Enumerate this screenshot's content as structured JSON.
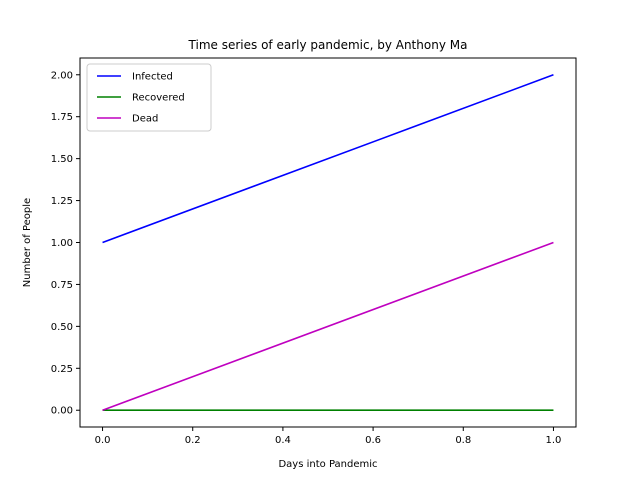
{
  "chart_data": {
    "type": "line",
    "title": "Time series of early pandemic, by Anthony Ma",
    "xlabel": "Days into Pandemic",
    "ylabel": "Number of People",
    "x": [
      0.0,
      1.0
    ],
    "xlim": [
      -0.05,
      1.05
    ],
    "ylim": [
      -0.1,
      2.1
    ],
    "xticks": [
      0.0,
      0.2,
      0.4,
      0.6,
      0.8,
      1.0
    ],
    "xtick_labels": [
      "0.0",
      "0.2",
      "0.4",
      "0.6",
      "0.8",
      "1.0"
    ],
    "yticks": [
      0.0,
      0.25,
      0.5,
      0.75,
      1.0,
      1.25,
      1.5,
      1.75,
      2.0
    ],
    "ytick_labels": [
      "0.00",
      "0.25",
      "0.50",
      "0.75",
      "1.00",
      "1.25",
      "1.50",
      "1.75",
      "2.00"
    ],
    "grid": false,
    "legend_position": "top-left",
    "series": [
      {
        "name": "Infected",
        "values": [
          1,
          2
        ],
        "color": "#0000ff"
      },
      {
        "name": "Recovered",
        "values": [
          0,
          0
        ],
        "color": "#008000"
      },
      {
        "name": "Dead",
        "values": [
          0,
          1
        ],
        "color": "#bf00bf"
      }
    ]
  }
}
